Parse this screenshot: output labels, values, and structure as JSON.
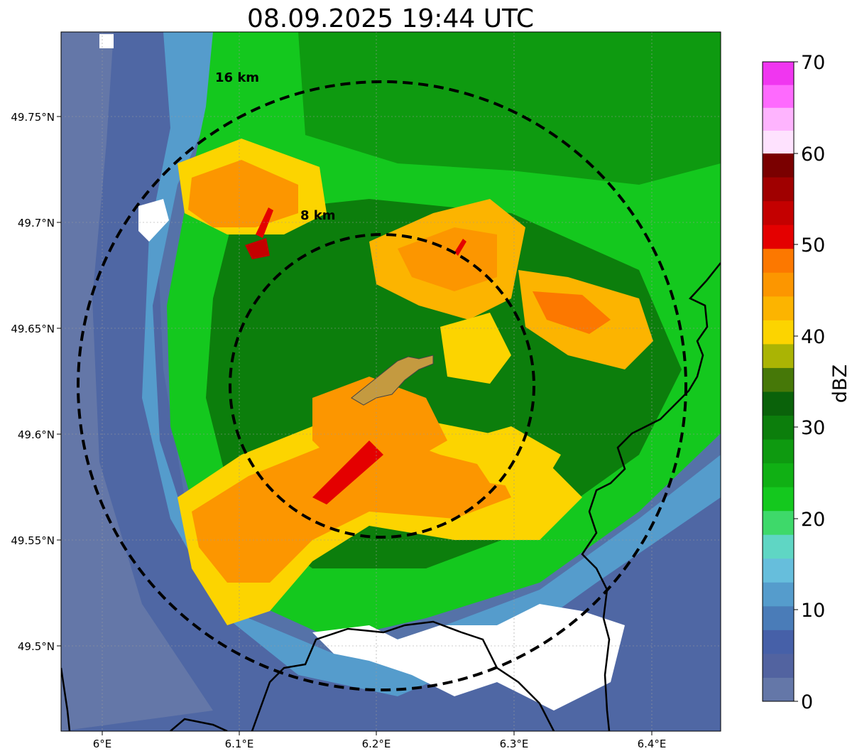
{
  "title": "08.09.2025 19:44 UTC",
  "map": {
    "lon_ticks": [
      "6°E",
      "6.1°E",
      "6.2°E",
      "6.3°E",
      "6.4°E"
    ],
    "lat_ticks": [
      "49.75°N",
      "49.7°N",
      "49.65°N",
      "49.6°N",
      "49.55°N",
      "49.5°N"
    ],
    "ring_labels": [
      "16 km",
      "8 km"
    ]
  },
  "colorbar": {
    "label": "dBZ",
    "ticks": [
      "0",
      "10",
      "20",
      "30",
      "40",
      "50",
      "60",
      "70"
    ],
    "colors": [
      "#6477a8",
      "#5263a0",
      "#4660a8",
      "#4a7cb8",
      "#559ccc",
      "#66bedc",
      "#5fd6c4",
      "#3ed96a",
      "#14c81e",
      "#10b014",
      "#0e9a10",
      "#0c7e0c",
      "#0a620a",
      "#467808",
      "#aab404",
      "#fcd400",
      "#fcb400",
      "#fc9600",
      "#fc7800",
      "#e40000",
      "#c40000",
      "#a00000",
      "#7a0000",
      "#fee2fe",
      "#feb4fe",
      "#fe6afe",
      "#f036f0"
    ]
  }
}
